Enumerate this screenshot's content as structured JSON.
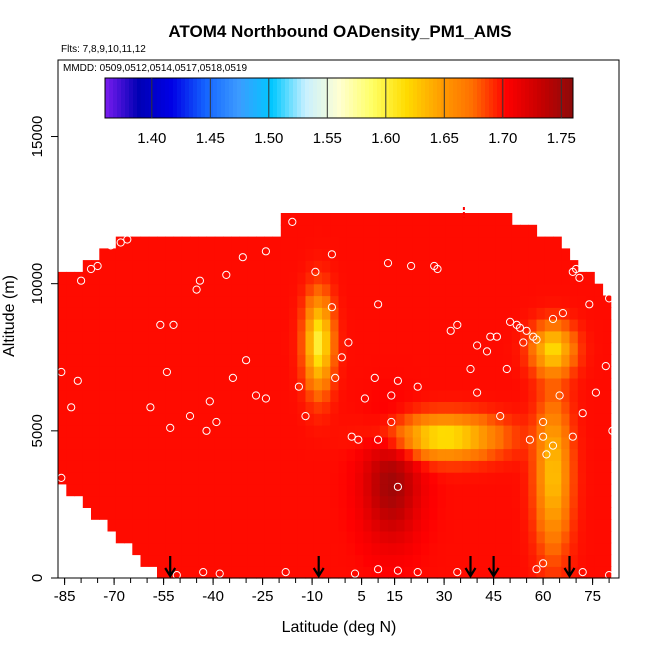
{
  "chart_data": {
    "type": "heatmap",
    "title": "ATOM4 Northbound OADensity_PM1_AMS",
    "flights_text": "Flts: 7,8,9,10,11,12",
    "dates_text": "MMDD: 0509,0512,0514,0517,0518,0519",
    "xlabel": "Latitude (deg N)",
    "ylabel": "Altitude (m)",
    "xlim": [
      -87,
      83
    ],
    "ylim": [
      0,
      17600
    ],
    "xticks": [
      -85,
      -70,
      -55,
      -40,
      -25,
      -10,
      5,
      15,
      30,
      45,
      60,
      75
    ],
    "xtick_labels": [
      "-85",
      "-70",
      "-55",
      "-40",
      "-25",
      "-10",
      "5",
      "15",
      "30",
      "45",
      "60",
      "75"
    ],
    "yticks": [
      0,
      5000,
      10000,
      15000
    ],
    "ytick_labels": [
      "0",
      "5000",
      "10000",
      "15000"
    ],
    "colorbar": {
      "min": 1.36,
      "max": 1.76,
      "ticks": [
        1.4,
        1.45,
        1.5,
        1.55,
        1.6,
        1.65,
        1.7,
        1.75
      ],
      "tick_labels": [
        "1.40",
        "1.45",
        "1.50",
        "1.55",
        "1.60",
        "1.65",
        "1.70",
        "1.75"
      ],
      "colors": [
        "#7a1cf0",
        "#0000b4",
        "#0000e6",
        "#1464ff",
        "#3c9bff",
        "#00c8ff",
        "#c8f0ff",
        "#ffffd2",
        "#ffff64",
        "#ffdc00",
        "#ffa000",
        "#ff6e00",
        "#ff0000",
        "#c80000",
        "#8c0a0a"
      ]
    },
    "base_value": 1.7,
    "features": [
      {
        "name": "upper-tropical-plume",
        "lat": -8,
        "alt": 8000,
        "lat_halfwidth": 4,
        "alt_halfwidth": 1500,
        "value": 1.6
      },
      {
        "name": "midlat-layer",
        "lat": 30,
        "alt": 4800,
        "lat_halfwidth": 16,
        "alt_halfwidth": 700,
        "value": 1.61
      },
      {
        "name": "northern-column",
        "lat": 63,
        "alt": 3500,
        "lat_halfwidth": 5,
        "alt_halfwidth": 2500,
        "value": 1.63
      },
      {
        "name": "high-north-layer",
        "lat": 63,
        "alt": 7800,
        "lat_halfwidth": 6,
        "alt_halfwidth": 800,
        "value": 1.62
      },
      {
        "name": "dense-core",
        "lat": 14,
        "alt": 3200,
        "lat_halfwidth": 8,
        "alt_halfwidth": 1800,
        "value": 1.75
      }
    ],
    "observations": [
      [
        -86,
        7000
      ],
      [
        -86,
        3400
      ],
      [
        -83,
        5800
      ],
      [
        -81,
        6700
      ],
      [
        -80,
        10100
      ],
      [
        -77,
        10500
      ],
      [
        -75,
        10600
      ],
      [
        -71,
        11300
      ],
      [
        -68,
        11400
      ],
      [
        -66,
        11500
      ],
      [
        -59,
        5800
      ],
      [
        -56,
        8600
      ],
      [
        -54,
        7000
      ],
      [
        -53,
        5100
      ],
      [
        -52,
        8600
      ],
      [
        -47,
        5500
      ],
      [
        -45,
        9800
      ],
      [
        -44,
        10100
      ],
      [
        -42,
        5000
      ],
      [
        -41,
        6000
      ],
      [
        -39,
        5300
      ],
      [
        -36,
        10300
      ],
      [
        -34,
        6800
      ],
      [
        -31,
        10900
      ],
      [
        -30,
        7400
      ],
      [
        -27,
        6200
      ],
      [
        -24,
        11100
      ],
      [
        -24,
        6100
      ],
      [
        -16,
        12100
      ],
      [
        -14,
        6500
      ],
      [
        -12,
        5500
      ],
      [
        -9,
        10400
      ],
      [
        -4,
        11000
      ],
      [
        -4,
        9200
      ],
      [
        -3,
        6800
      ],
      [
        -1,
        7500
      ],
      [
        1,
        8000
      ],
      [
        2,
        4800
      ],
      [
        4,
        4700
      ],
      [
        6,
        6100
      ],
      [
        9,
        6800
      ],
      [
        10,
        9300
      ],
      [
        10,
        4700
      ],
      [
        13,
        10700
      ],
      [
        14,
        5300
      ],
      [
        14,
        6200
      ],
      [
        16,
        6700
      ],
      [
        16,
        3100
      ],
      [
        20,
        10600
      ],
      [
        22,
        6500
      ],
      [
        27,
        10600
      ],
      [
        28,
        10500
      ],
      [
        32,
        8400
      ],
      [
        34,
        8600
      ],
      [
        38,
        7100
      ],
      [
        40,
        6300
      ],
      [
        40,
        7900
      ],
      [
        43,
        7700
      ],
      [
        44,
        8200
      ],
      [
        46,
        8200
      ],
      [
        47,
        5500
      ],
      [
        49,
        7100
      ],
      [
        50,
        8700
      ],
      [
        52,
        8600
      ],
      [
        53,
        8500
      ],
      [
        54,
        8000
      ],
      [
        55,
        8400
      ],
      [
        56,
        4700
      ],
      [
        57,
        8200
      ],
      [
        58,
        8100
      ],
      [
        60,
        5300
      ],
      [
        60,
        4800
      ],
      [
        61,
        4200
      ],
      [
        63,
        4500
      ],
      [
        63,
        8800
      ],
      [
        65,
        6200
      ],
      [
        66,
        9000
      ],
      [
        69,
        10400
      ],
      [
        69,
        4800
      ],
      [
        70,
        10500
      ],
      [
        71,
        10200
      ],
      [
        72,
        5600
      ],
      [
        74,
        10700
      ],
      [
        74,
        9300
      ],
      [
        76,
        6300
      ],
      [
        79,
        7200
      ],
      [
        80,
        9500
      ],
      [
        81,
        5000
      ],
      [
        -51,
        100
      ],
      [
        -43,
        200
      ],
      [
        -38,
        150
      ],
      [
        -18,
        200
      ],
      [
        3,
        150
      ],
      [
        10,
        300
      ],
      [
        16,
        250
      ],
      [
        22,
        200
      ],
      [
        34,
        200
      ],
      [
        58,
        300
      ],
      [
        60,
        500
      ],
      [
        72,
        200
      ],
      [
        80,
        100
      ]
    ],
    "arrow_latitudes": [
      -53,
      -8,
      38,
      45,
      68
    ],
    "red_marker_latitude": 36
  }
}
